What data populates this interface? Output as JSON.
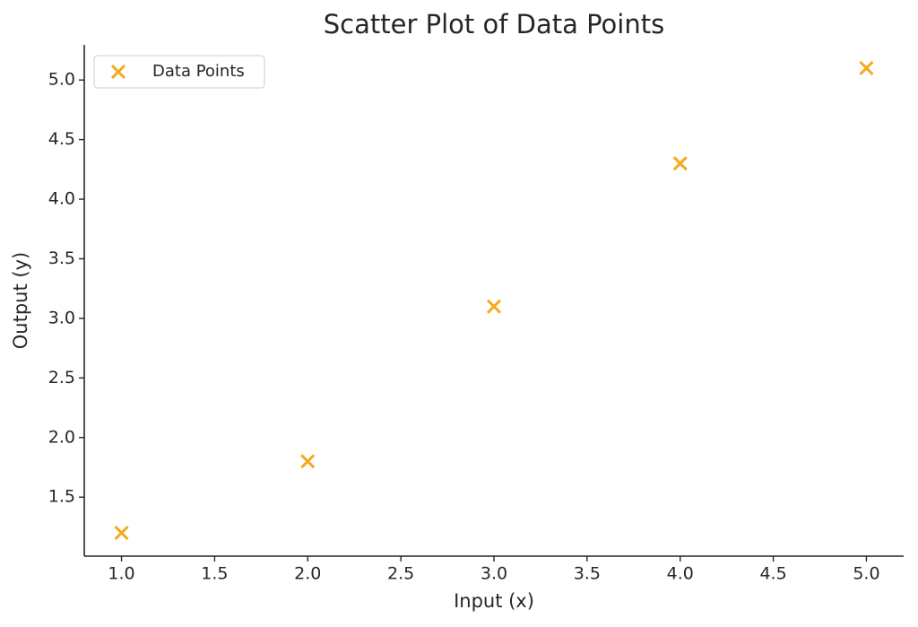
{
  "chart_data": {
    "type": "scatter",
    "title": "Scatter Plot of Data Points",
    "x_label": "Input (x)",
    "y_label": "Output (y)",
    "series": [
      {
        "name": "Data Points",
        "color": "#f5a91c",
        "marker": "x",
        "x": [
          1,
          2,
          3,
          4,
          5
        ],
        "values": [
          1.2,
          1.8,
          3.1,
          4.3,
          5.1
        ]
      }
    ],
    "xlim": [
      0.8,
      5.2
    ],
    "xticks": [
      {
        "value": 1,
        "label": "1.0"
      },
      {
        "value": 1.5,
        "label": "1.5"
      },
      {
        "value": 2,
        "label": "2.0"
      },
      {
        "value": 2.5,
        "label": "2.5"
      },
      {
        "value": 3,
        "label": "3.0"
      },
      {
        "value": 3.5,
        "label": "3.5"
      },
      {
        "value": 4,
        "label": "4.0"
      },
      {
        "value": 4.5,
        "label": "4.5"
      },
      {
        "value": 5,
        "label": "5.0"
      }
    ],
    "ylim": [
      1.005,
      5.295
    ],
    "yticks": [
      {
        "value": 1.5,
        "label": "1.5"
      },
      {
        "value": 2,
        "label": "2.0"
      },
      {
        "value": 2.5,
        "label": "2.5"
      },
      {
        "value": 3,
        "label": "3.0"
      },
      {
        "value": 3.5,
        "label": "3.5"
      },
      {
        "value": 4,
        "label": "4.0"
      },
      {
        "value": 4.5,
        "label": "4.5"
      },
      {
        "value": 5,
        "label": "5.0"
      }
    ],
    "grid": false,
    "legend_position": "upper-left"
  }
}
